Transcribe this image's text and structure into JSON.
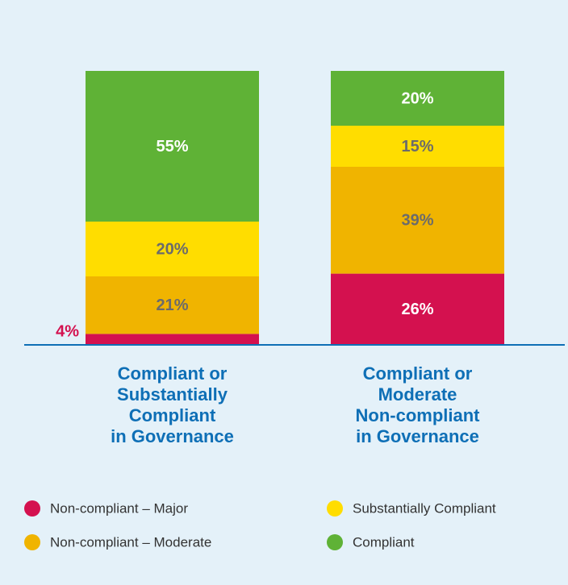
{
  "chart_data": {
    "type": "stacked-bar",
    "categories": [
      "Compliant or\nSubstantially\nCompliant\nin Governance",
      "Compliant or\nModerate\nNon-compliant\nin Governance"
    ],
    "ylim": [
      0,
      100
    ],
    "series": [
      {
        "name": "Non-compliant – Major",
        "color": "#d4114f",
        "label_color": "#ffffff",
        "values": [
          4,
          26
        ],
        "value_labels": [
          "4%",
          "26%"
        ]
      },
      {
        "name": "Non-compliant – Moderate",
        "color": "#f0b400",
        "label_color": "#6b6b6b",
        "values": [
          21,
          39
        ],
        "value_labels": [
          "21%",
          "39%"
        ]
      },
      {
        "name": "Substantially Compliant",
        "color": "#ffdd00",
        "label_color": "#6b6b6b",
        "values": [
          20,
          15
        ],
        "value_labels": [
          "20%",
          "15%"
        ]
      },
      {
        "name": "Compliant",
        "color": "#5fb236",
        "label_color": "#ffffff",
        "values": [
          55,
          20
        ],
        "value_labels": [
          "55%",
          "20%"
        ]
      }
    ]
  }
}
